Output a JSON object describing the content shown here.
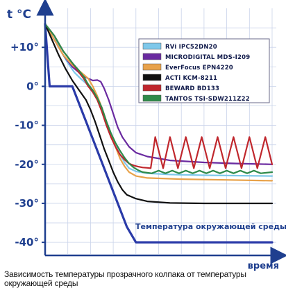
{
  "caption": "Зависимость температуры прозрачного колпака от температуры окружающей среды",
  "chart_data": {
    "type": "line",
    "xlabel": "время",
    "ylabel": "t °C",
    "ylim": [
      -43,
      20
    ],
    "yticks": [
      {
        "value": 10,
        "label": "+10°"
      },
      {
        "value": 0,
        "label": "0°"
      },
      {
        "value": -10,
        "label": "-10°"
      },
      {
        "value": -20,
        "label": "-20°"
      },
      {
        "value": -30,
        "label": "-30°"
      },
      {
        "value": -40,
        "label": "-40°"
      }
    ],
    "grid": true,
    "legend_position": "top-right",
    "series": [
      {
        "name": "RVi IPC52DN20",
        "color": "#7ec8ea",
        "points": [
          [
            0,
            16
          ],
          [
            4,
            13
          ],
          [
            7,
            9
          ],
          [
            10,
            6
          ],
          [
            13,
            3.5
          ],
          [
            16,
            1.8
          ],
          [
            18,
            0.8
          ],
          [
            20,
            -0.5
          ],
          [
            22,
            -1.5
          ],
          [
            23.5,
            -3.5
          ],
          [
            25,
            -6
          ],
          [
            27,
            -9
          ],
          [
            29,
            -12
          ],
          [
            31,
            -15
          ],
          [
            33,
            -17.5
          ],
          [
            35,
            -19.5
          ],
          [
            37,
            -21
          ],
          [
            40,
            -21.8
          ],
          [
            45,
            -22.3
          ],
          [
            55,
            -22.6
          ],
          [
            70,
            -22.8
          ],
          [
            100,
            -23
          ]
        ]
      },
      {
        "name": "MICRODIGITAL MDS-I209",
        "color": "#6a2aa0",
        "points": [
          [
            0,
            16
          ],
          [
            4,
            12
          ],
          [
            8,
            8
          ],
          [
            12,
            5
          ],
          [
            15,
            3.5
          ],
          [
            18,
            2.3
          ],
          [
            21,
            1.5
          ],
          [
            23,
            1.6
          ],
          [
            24.5,
            1.2
          ],
          [
            26,
            -0.5
          ],
          [
            28,
            -3.5
          ],
          [
            30,
            -7
          ],
          [
            32,
            -10.5
          ],
          [
            34,
            -13
          ],
          [
            37,
            -15.5
          ],
          [
            40,
            -17
          ],
          [
            45,
            -18
          ],
          [
            55,
            -19
          ],
          [
            70,
            -19.5
          ],
          [
            85,
            -19.8
          ],
          [
            100,
            -20
          ]
        ]
      },
      {
        "name": "EverFocus EPN4220",
        "color": "#e8a24a",
        "points": [
          [
            0,
            16
          ],
          [
            4,
            12
          ],
          [
            8,
            8
          ],
          [
            12,
            5.5
          ],
          [
            15,
            4
          ],
          [
            17,
            3
          ],
          [
            19,
            2
          ],
          [
            21,
            0
          ],
          [
            23,
            -2.5
          ],
          [
            25,
            -5.5
          ],
          [
            27,
            -9
          ],
          [
            29,
            -12.5
          ],
          [
            31,
            -15.5
          ],
          [
            33,
            -18.5
          ],
          [
            35,
            -20.5
          ],
          [
            37,
            -22
          ],
          [
            40,
            -23
          ],
          [
            45,
            -23.5
          ],
          [
            60,
            -23.8
          ],
          [
            80,
            -24
          ],
          [
            100,
            -24.2
          ]
        ]
      },
      {
        "name": "ACTi KCM-8211",
        "color": "#111111",
        "points": [
          [
            0,
            16
          ],
          [
            3,
            12
          ],
          [
            6,
            8
          ],
          [
            9,
            4.5
          ],
          [
            12,
            1.5
          ],
          [
            15,
            -1
          ],
          [
            18,
            -3.5
          ],
          [
            20,
            -6
          ],
          [
            22,
            -9
          ],
          [
            24,
            -12.5
          ],
          [
            26,
            -16
          ],
          [
            28,
            -19
          ],
          [
            30,
            -22
          ],
          [
            32,
            -24.5
          ],
          [
            34,
            -26.5
          ],
          [
            36,
            -27.8
          ],
          [
            40,
            -28.8
          ],
          [
            45,
            -29.5
          ],
          [
            55,
            -29.9
          ],
          [
            70,
            -30
          ],
          [
            100,
            -30
          ]
        ]
      },
      {
        "name": "BEWARD BD133",
        "color": "#c0272d",
        "points": [
          [
            0,
            16
          ],
          [
            4,
            13
          ],
          [
            8,
            9
          ],
          [
            12,
            6
          ],
          [
            15,
            3.5
          ],
          [
            17,
            2
          ],
          [
            19,
            0
          ],
          [
            21,
            -1.5
          ],
          [
            23,
            -3.5
          ],
          [
            25,
            -6.5
          ],
          [
            27,
            -10
          ],
          [
            29,
            -13
          ],
          [
            31,
            -15.5
          ],
          [
            33,
            -17.5
          ],
          [
            35,
            -18.8
          ],
          [
            37,
            -19.8
          ],
          [
            39,
            -20.3
          ],
          [
            41,
            -20.6
          ],
          [
            43,
            -20.8
          ],
          [
            45,
            -20.9
          ],
          [
            46.5,
            -21
          ],
          [
            48.5,
            -13
          ],
          [
            52,
            -21
          ],
          [
            55,
            -13
          ],
          [
            58.5,
            -21
          ],
          [
            62,
            -13
          ],
          [
            65.5,
            -21
          ],
          [
            69,
            -13
          ],
          [
            72.5,
            -21
          ],
          [
            76,
            -13
          ],
          [
            79.5,
            -21
          ],
          [
            83,
            -13
          ],
          [
            86.5,
            -21
          ],
          [
            90,
            -13
          ],
          [
            93.5,
            -21
          ],
          [
            97,
            -13
          ],
          [
            100,
            -20
          ]
        ]
      },
      {
        "name": "TANTOS TSI-SDW211Z22",
        "color": "#2e8a4a",
        "points": [
          [
            0,
            16
          ],
          [
            4,
            13
          ],
          [
            8,
            9
          ],
          [
            12,
            6
          ],
          [
            15,
            4
          ],
          [
            17,
            2.5
          ],
          [
            19,
            0.5
          ],
          [
            21,
            -1
          ],
          [
            23,
            -3
          ],
          [
            25,
            -5.5
          ],
          [
            27,
            -9
          ],
          [
            29,
            -12
          ],
          [
            31,
            -14.5
          ],
          [
            33,
            -16.5
          ],
          [
            35,
            -18.3
          ],
          [
            37,
            -19.8
          ],
          [
            39,
            -20.8
          ],
          [
            41,
            -21.5
          ],
          [
            43,
            -22
          ],
          [
            47,
            -22.3
          ],
          [
            50,
            -21.6
          ],
          [
            53,
            -22.3
          ],
          [
            56,
            -21.6
          ],
          [
            59,
            -22.3
          ],
          [
            62,
            -21.6
          ],
          [
            65,
            -22.3
          ],
          [
            68,
            -21.6
          ],
          [
            71,
            -22.3
          ],
          [
            74,
            -21.6
          ],
          [
            77,
            -22.3
          ],
          [
            80,
            -21.6
          ],
          [
            83,
            -22.3
          ],
          [
            86,
            -21.6
          ],
          [
            89,
            -22.3
          ],
          [
            92,
            -21.6
          ],
          [
            95,
            -22.3
          ],
          [
            100,
            -22
          ]
        ]
      },
      {
        "name": "Температура окружающей среды",
        "color": "#2a3aa8",
        "points": [
          [
            0,
            16
          ],
          [
            2,
            0
          ],
          [
            12,
            0
          ],
          [
            18,
            -9
          ],
          [
            24,
            -18
          ],
          [
            30,
            -27
          ],
          [
            36,
            -36
          ],
          [
            40,
            -40
          ],
          [
            60,
            -40
          ],
          [
            100,
            -40
          ]
        ]
      }
    ]
  }
}
